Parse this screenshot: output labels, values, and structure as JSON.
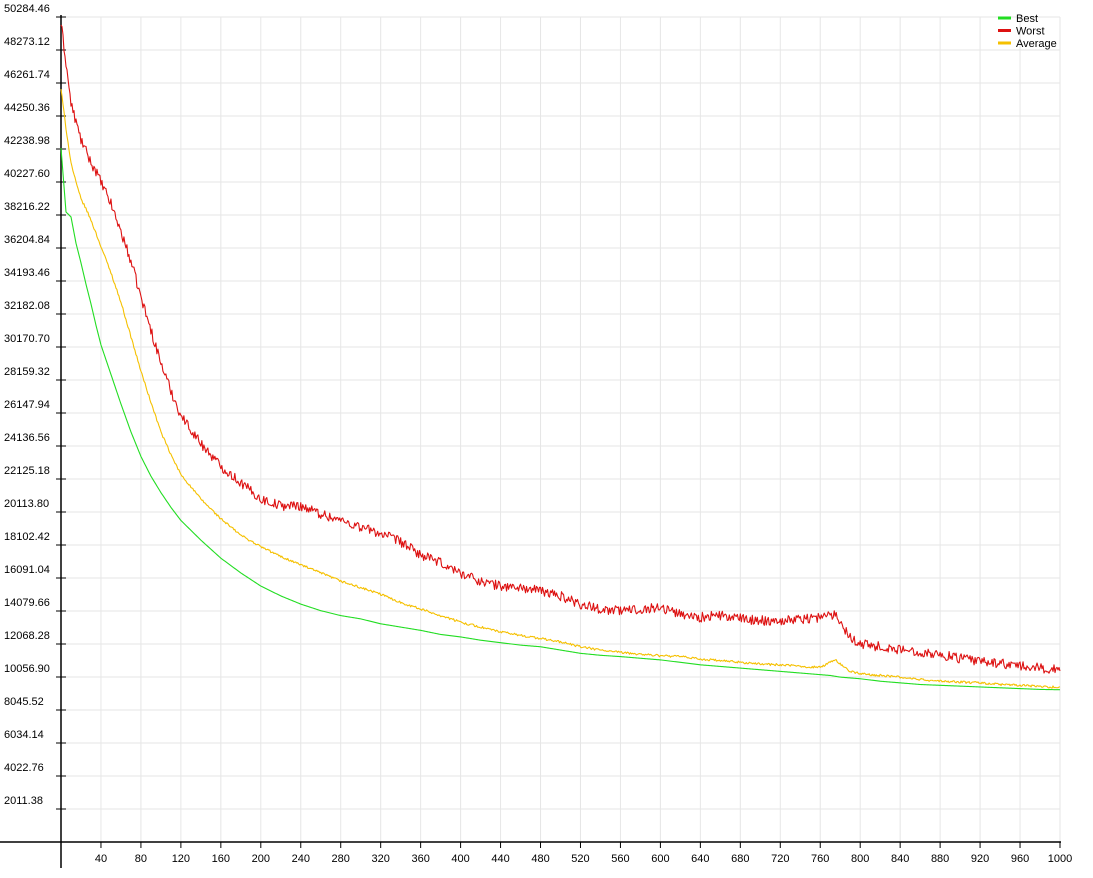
{
  "chart_data": {
    "type": "line",
    "title": "",
    "xlabel": "",
    "ylabel": "",
    "xlim": [
      0,
      1000
    ],
    "ylim": [
      0,
      50284.46
    ],
    "grid": true,
    "legend_position": "top-right",
    "x_ticks": [
      40,
      80,
      120,
      160,
      200,
      240,
      280,
      320,
      360,
      400,
      440,
      480,
      520,
      560,
      600,
      640,
      680,
      720,
      760,
      800,
      840,
      880,
      920,
      960,
      1000
    ],
    "y_ticks": [
      "2011.38",
      "4022.76",
      "6034.14",
      "8045.52",
      "10056.90",
      "12068.28",
      "14079.66",
      "16091.04",
      "18102.42",
      "20113.80",
      "22125.18",
      "24136.56",
      "26147.94",
      "28159.32",
      "30170.70",
      "32182.08",
      "34193.46",
      "36204.84",
      "38216.22",
      "40227.60",
      "42238.98",
      "44250.36",
      "46261.74",
      "48273.12",
      "50284.46"
    ],
    "series": [
      {
        "name": "Best",
        "color": "#22dd22",
        "noise": 0,
        "points": [
          [
            0,
            42300
          ],
          [
            5,
            38400
          ],
          [
            10,
            38100
          ],
          [
            15,
            36500
          ],
          [
            20,
            35300
          ],
          [
            25,
            34000
          ],
          [
            30,
            32800
          ],
          [
            35,
            31500
          ],
          [
            40,
            30300
          ],
          [
            50,
            28500
          ],
          [
            60,
            26700
          ],
          [
            70,
            25000
          ],
          [
            80,
            23500
          ],
          [
            90,
            22300
          ],
          [
            100,
            21300
          ],
          [
            110,
            20400
          ],
          [
            120,
            19600
          ],
          [
            140,
            18400
          ],
          [
            160,
            17300
          ],
          [
            180,
            16400
          ],
          [
            200,
            15600
          ],
          [
            220,
            15000
          ],
          [
            240,
            14500
          ],
          [
            260,
            14100
          ],
          [
            280,
            13800
          ],
          [
            300,
            13600
          ],
          [
            320,
            13300
          ],
          [
            340,
            13100
          ],
          [
            360,
            12900
          ],
          [
            380,
            12650
          ],
          [
            400,
            12500
          ],
          [
            420,
            12300
          ],
          [
            440,
            12150
          ],
          [
            460,
            12000
          ],
          [
            480,
            11900
          ],
          [
            500,
            11700
          ],
          [
            520,
            11500
          ],
          [
            540,
            11380
          ],
          [
            560,
            11300
          ],
          [
            580,
            11200
          ],
          [
            600,
            11100
          ],
          [
            620,
            10950
          ],
          [
            640,
            10800
          ],
          [
            660,
            10700
          ],
          [
            680,
            10600
          ],
          [
            700,
            10500
          ],
          [
            720,
            10400
          ],
          [
            740,
            10300
          ],
          [
            760,
            10200
          ],
          [
            770,
            10150
          ],
          [
            780,
            10050
          ],
          [
            800,
            9950
          ],
          [
            820,
            9800
          ],
          [
            840,
            9700
          ],
          [
            860,
            9600
          ],
          [
            880,
            9550
          ],
          [
            900,
            9500
          ],
          [
            920,
            9450
          ],
          [
            940,
            9400
          ],
          [
            960,
            9350
          ],
          [
            980,
            9300
          ],
          [
            1000,
            9280
          ]
        ]
      },
      {
        "name": "Worst",
        "color": "#dd1111",
        "noise": 300,
        "points": [
          [
            0,
            49900
          ],
          [
            5,
            47500
          ],
          [
            10,
            45000
          ],
          [
            15,
            43900
          ],
          [
            20,
            42800
          ],
          [
            25,
            42100
          ],
          [
            30,
            41400
          ],
          [
            35,
            40900
          ],
          [
            40,
            40200
          ],
          [
            50,
            38900
          ],
          [
            60,
            37200
          ],
          [
            70,
            35400
          ],
          [
            80,
            33200
          ],
          [
            90,
            31200
          ],
          [
            100,
            29200
          ],
          [
            110,
            27500
          ],
          [
            120,
            26000
          ],
          [
            140,
            24300
          ],
          [
            160,
            22900
          ],
          [
            180,
            21900
          ],
          [
            200,
            20900
          ],
          [
            220,
            20500
          ],
          [
            240,
            20500
          ],
          [
            260,
            20000
          ],
          [
            280,
            19600
          ],
          [
            300,
            19200
          ],
          [
            320,
            18800
          ],
          [
            340,
            18300
          ],
          [
            360,
            17500
          ],
          [
            380,
            17000
          ],
          [
            400,
            16400
          ],
          [
            420,
            15900
          ],
          [
            440,
            15600
          ],
          [
            460,
            15500
          ],
          [
            480,
            15300
          ],
          [
            500,
            15000
          ],
          [
            520,
            14500
          ],
          [
            540,
            14200
          ],
          [
            560,
            14100
          ],
          [
            580,
            14200
          ],
          [
            600,
            14300
          ],
          [
            620,
            13900
          ],
          [
            640,
            13700
          ],
          [
            660,
            13800
          ],
          [
            680,
            13600
          ],
          [
            700,
            13500
          ],
          [
            720,
            13500
          ],
          [
            740,
            13600
          ],
          [
            760,
            13700
          ],
          [
            775,
            13900
          ],
          [
            790,
            12500
          ],
          [
            800,
            12100
          ],
          [
            820,
            11900
          ],
          [
            840,
            11700
          ],
          [
            860,
            11600
          ],
          [
            880,
            11400
          ],
          [
            900,
            11200
          ],
          [
            920,
            11000
          ],
          [
            940,
            10900
          ],
          [
            960,
            10700
          ],
          [
            980,
            10600
          ],
          [
            1000,
            10500
          ]
        ]
      },
      {
        "name": "Average",
        "color": "#f5c000",
        "noise": 70,
        "points": [
          [
            0,
            45900
          ],
          [
            5,
            43500
          ],
          [
            10,
            41400
          ],
          [
            15,
            40200
          ],
          [
            20,
            39200
          ],
          [
            25,
            38600
          ],
          [
            30,
            37900
          ],
          [
            35,
            37100
          ],
          [
            40,
            36300
          ],
          [
            50,
            34700
          ],
          [
            60,
            32900
          ],
          [
            70,
            30800
          ],
          [
            80,
            28700
          ],
          [
            90,
            26800
          ],
          [
            100,
            25000
          ],
          [
            110,
            23600
          ],
          [
            120,
            22400
          ],
          [
            140,
            20900
          ],
          [
            160,
            19700
          ],
          [
            180,
            18700
          ],
          [
            200,
            18000
          ],
          [
            220,
            17400
          ],
          [
            240,
            16900
          ],
          [
            260,
            16400
          ],
          [
            280,
            15900
          ],
          [
            300,
            15500
          ],
          [
            320,
            15100
          ],
          [
            340,
            14600
          ],
          [
            360,
            14200
          ],
          [
            380,
            13800
          ],
          [
            400,
            13400
          ],
          [
            420,
            13100
          ],
          [
            440,
            12800
          ],
          [
            460,
            12600
          ],
          [
            480,
            12400
          ],
          [
            500,
            12200
          ],
          [
            520,
            11900
          ],
          [
            540,
            11700
          ],
          [
            560,
            11550
          ],
          [
            580,
            11450
          ],
          [
            600,
            11350
          ],
          [
            620,
            11300
          ],
          [
            640,
            11150
          ],
          [
            660,
            11050
          ],
          [
            680,
            10950
          ],
          [
            700,
            10850
          ],
          [
            720,
            10800
          ],
          [
            740,
            10700
          ],
          [
            760,
            10650
          ],
          [
            775,
            11100
          ],
          [
            790,
            10400
          ],
          [
            800,
            10250
          ],
          [
            820,
            10150
          ],
          [
            840,
            10050
          ],
          [
            860,
            9900
          ],
          [
            880,
            9800
          ],
          [
            900,
            9750
          ],
          [
            920,
            9700
          ],
          [
            940,
            9600
          ],
          [
            960,
            9550
          ],
          [
            980,
            9480
          ],
          [
            1000,
            9420
          ]
        ]
      }
    ]
  }
}
